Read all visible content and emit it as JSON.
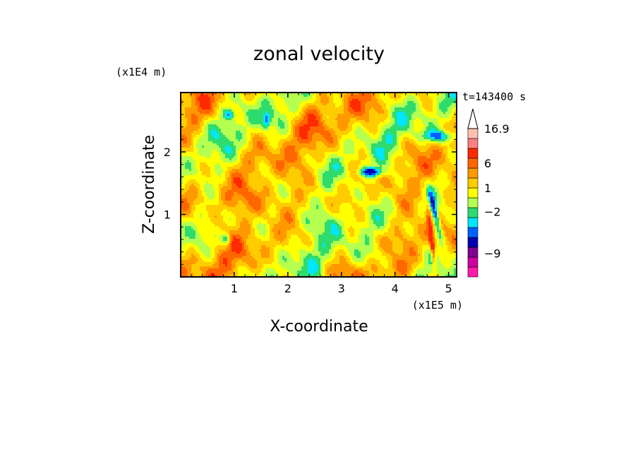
{
  "chart_data": {
    "type": "heatmap",
    "title": "zonal velocity",
    "xlabel": "X-coordinate",
    "ylabel": "Z-coordinate",
    "x_unit_label": "(x1E5 m)",
    "y_unit_label": "(x1E4 m)",
    "time_label": "t=143400 s",
    "xlim": [
      0,
      5.15
    ],
    "ylim": [
      0,
      2.95
    ],
    "x_ticks": [
      {
        "value": 1,
        "label": "1"
      },
      {
        "value": 2,
        "label": "2"
      },
      {
        "value": 3,
        "label": "3"
      },
      {
        "value": 4,
        "label": "4"
      },
      {
        "value": 5,
        "label": "5"
      }
    ],
    "y_ticks": [
      {
        "value": 1,
        "label": "1"
      },
      {
        "value": 2,
        "label": "2"
      }
    ],
    "colorbar": {
      "colors": [
        "#ff1aaa",
        "#cc00a0",
        "#800090",
        "#0000b0",
        "#0060ff",
        "#00e6ff",
        "#2edc6e",
        "#b4ff50",
        "#ffff00",
        "#ffcc00",
        "#ff9900",
        "#ff6600",
        "#ff2a00",
        "#ff7f7f",
        "#ffc0b0",
        "#ffffff"
      ],
      "labels": [
        {
          "value": "16.9",
          "at": 15
        },
        {
          "value": "6",
          "at": 11.5
        },
        {
          "value": "1",
          "at": 9
        },
        {
          "value": "−2",
          "at": 6.6
        },
        {
          "value": "−9",
          "at": 2.4
        }
      ]
    },
    "field_levels": [
      "#0000b0",
      "#0060ff",
      "#00e6ff",
      "#2edc6e",
      "#b4ff50",
      "#ffff00",
      "#ffcc00",
      "#ff9900",
      "#ff6600",
      "#ff2a00"
    ]
  }
}
